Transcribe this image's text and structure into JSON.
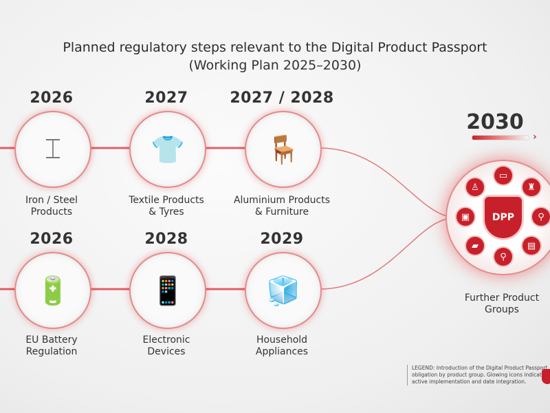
{
  "title": "Planned regulatory steps relevant to the Digital Product Passport",
  "subtitle": "(Working Plan 2025–2030)",
  "milestones": [
    {
      "year": "2026",
      "label_line1": "Iron / Steel",
      "label_line2": "Products",
      "icon": "steel-beam-coil-icon"
    },
    {
      "year": "2027",
      "label_line1": "Textile Products",
      "label_line2": "& Tyres",
      "icon": "tshirt-tyre-icon"
    },
    {
      "year": "2027 / 2028",
      "label_line1": "Aluminium Products",
      "label_line2": "& Furniture",
      "icon": "aluminium-chair-icon"
    },
    {
      "year": "2026",
      "label_line1": "EU Battery",
      "label_line2": "Regulation",
      "icon": "battery-icon"
    },
    {
      "year": "2028",
      "label_line1": "Electronic",
      "label_line2": "Devices",
      "icon": "phone-laptop-icon"
    },
    {
      "year": "2029",
      "label_line1": "Household",
      "label_line2": "Appliances",
      "icon": "fridge-washer-icon"
    }
  ],
  "final": {
    "year": "2030",
    "badge": "DPP",
    "label_line1": "Further Product",
    "label_line2": "Groups"
  },
  "legend": "LEGEND: Introduction of the Digital Product Passport obligation by product group. Glowing icons indicate active implementation and date integration.",
  "colors": {
    "accent": "#c8202a",
    "glow": "#e58a8a",
    "text": "#333333"
  }
}
